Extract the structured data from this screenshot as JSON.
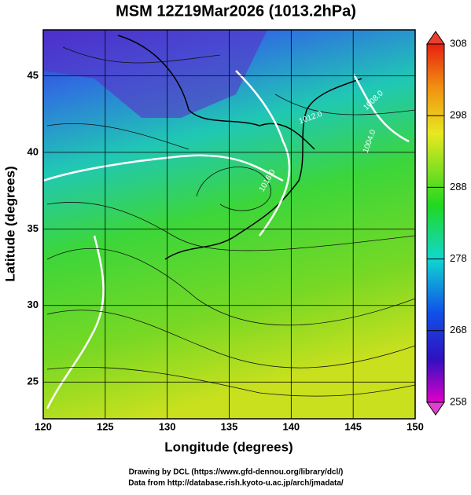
{
  "title": "MSM 12Z19Mar2026 (1013.2hPa)",
  "map": {
    "xlabel": "Longitude (degrees)",
    "ylabel": "Latitude  (degrees)",
    "xlim": [
      120,
      150
    ],
    "ylim": [
      22.6,
      48.0
    ],
    "xticks": [
      120,
      125,
      130,
      135,
      140,
      145,
      150
    ],
    "yticks": [
      25,
      30,
      35,
      40,
      45
    ],
    "grid": true
  },
  "colorbar": {
    "lim": [
      258,
      308
    ],
    "ticks": [
      258,
      268,
      278,
      288,
      298,
      308
    ]
  },
  "contour_labels": [
    "1012.0",
    "1008.0",
    "1004.0",
    "1016.0"
  ],
  "footer": [
    "Drawing by DCL (https://www.gfd-dennou.org/library/dcl/)",
    "Data from http://database.rish.kyoto-u.ac.jp/arch/jmadata/"
  ]
}
